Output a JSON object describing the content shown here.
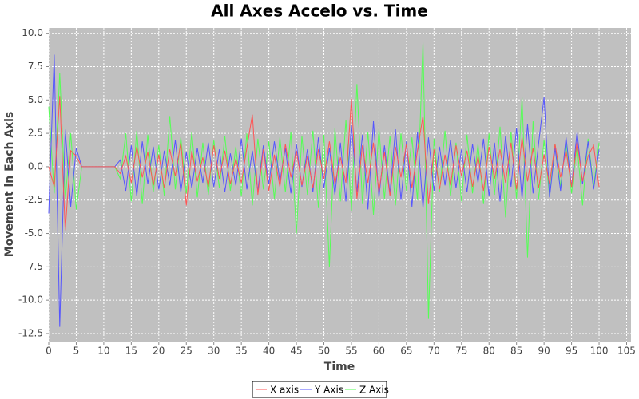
{
  "chart_data": {
    "type": "line",
    "title": "All Axes Accelo vs. Time",
    "x_label": "Time",
    "y_label": "Movement in Each Axis",
    "x": [
      0,
      1,
      2,
      3,
      4,
      5,
      6,
      7,
      8,
      9,
      10,
      11,
      12,
      13,
      14,
      15,
      16,
      17,
      18,
      19,
      20,
      21,
      22,
      23,
      24,
      25,
      26,
      27,
      28,
      29,
      30,
      31,
      32,
      33,
      34,
      35,
      36,
      37,
      38,
      39,
      40,
      41,
      42,
      43,
      44,
      45,
      46,
      47,
      48,
      49,
      50,
      51,
      52,
      53,
      54,
      55,
      56,
      57,
      58,
      59,
      60,
      61,
      62,
      63,
      64,
      65,
      66,
      67,
      68,
      69,
      70,
      71,
      72,
      73,
      74,
      75,
      76,
      77,
      78,
      79,
      80,
      81,
      82,
      83,
      84,
      85,
      86,
      87,
      88,
      89,
      90,
      91,
      92,
      93,
      94,
      95,
      96,
      97,
      98,
      99,
      100
    ],
    "series": [
      {
        "name": "X axis",
        "color": "#ff5555",
        "values": [
          0,
          -1.5,
          5.3,
          -4.8,
          1.2,
          0.8,
          0,
          0,
          0,
          0,
          0,
          0,
          0,
          -0.5,
          0.8,
          -1.2,
          1.5,
          -0.8,
          1.1,
          -1.4,
          0.9,
          -1.6,
          1.3,
          -0.7,
          1.8,
          -2.9,
          1.2,
          -1.1,
          0.7,
          -1.5,
          1.6,
          -0.9,
          1.2,
          -1.3,
          0.6,
          -1.2,
          1.4,
          3.9,
          -2.1,
          1.3,
          -1.8,
          0.9,
          -1.5,
          1.7,
          -0.8,
          1.2,
          -1.4,
          0.8,
          -1.6,
          1.3,
          -0.9,
          1.9,
          -1.3,
          0.7,
          -1.2,
          5.1,
          -2.4,
          1.6,
          -1.2,
          1.8,
          -1.9,
          1.1,
          -2.2,
          1.5,
          -0.8,
          1.7,
          -1.6,
          1.2,
          3.8,
          -2.8,
          1.3,
          -1.7,
          0.9,
          -1.4,
          1.6,
          -0.7,
          1.2,
          -1.5,
          0.8,
          -1.8,
          1.5,
          -0.9,
          1.3,
          -1.2,
          1.8,
          -1.7,
          2.2,
          -1.1,
          1.4,
          -1.6,
          0.9,
          -1.3,
          1.7,
          -0.8,
          1.2,
          -1.5,
          1.9,
          -1.1,
          0.8,
          1.6,
          -1.5
        ]
      },
      {
        "name": "Y Axis",
        "color": "#5555ff",
        "values": [
          -3.5,
          8.4,
          -12.0,
          2.8,
          -3.0,
          1.4,
          0,
          0,
          0,
          0,
          0,
          0,
          0,
          0.5,
          -1.8,
          1.6,
          -2.2,
          1.9,
          -1.3,
          1.5,
          -1.7,
          1.2,
          -1.4,
          2.0,
          -1.9,
          1.1,
          -1.6,
          1.4,
          -1.2,
          1.8,
          -1.5,
          1.3,
          -1.9,
          1.0,
          -1.4,
          2.1,
          -1.7,
          1.2,
          -1.8,
          1.6,
          -1.3,
          1.9,
          -1.1,
          1.4,
          -2.0,
          1.7,
          -1.5,
          1.3,
          -1.9,
          2.2,
          -1.6,
          1.4,
          -2.1,
          1.8,
          -2.6,
          3.1,
          -1.9,
          2.4,
          -3.2,
          3.4,
          -2.3,
          1.6,
          -2.0,
          2.8,
          -2.5,
          1.9,
          -3.0,
          2.6,
          -3.1,
          2.2,
          -1.8,
          1.5,
          -1.4,
          2.0,
          -1.6,
          1.3,
          -1.9,
          1.7,
          -1.2,
          2.1,
          -2.2,
          1.8,
          -2.6,
          2.3,
          -1.5,
          2.9,
          -2.4,
          3.2,
          -2.0,
          1.7,
          5.2,
          -2.3,
          1.4,
          -1.8,
          2.2,
          -1.5,
          2.6,
          -1.3,
          1.9,
          -1.7,
          1.3
        ]
      },
      {
        "name": "Z Axis",
        "color": "#55ff55",
        "values": [
          4.5,
          -2.0,
          7.0,
          -2.5,
          2.5,
          -3.2,
          0,
          0,
          0,
          0,
          0,
          0,
          0,
          -0.9,
          2.5,
          -2.6,
          2.7,
          -2.8,
          2.4,
          -1.9,
          1.6,
          -2.2,
          3.8,
          -1.7,
          2.2,
          -2.0,
          2.6,
          -2.3,
          1.8,
          -2.1,
          2.0,
          -1.6,
          2.3,
          -1.8,
          1.5,
          -2.2,
          2.5,
          -2.9,
          2.1,
          -1.7,
          1.9,
          -2.4,
          2.2,
          -1.9,
          2.6,
          -5.0,
          2.3,
          -2.1,
          2.7,
          -3.1,
          2.4,
          -7.5,
          2.9,
          -2.6,
          3.5,
          -3.3,
          6.2,
          -2.8,
          2.6,
          -3.6,
          2.8,
          -2.4,
          2.3,
          -2.9,
          2.5,
          -1.8,
          2.2,
          -2.5,
          9.3,
          -11.4,
          2.1,
          -1.9,
          2.7,
          -2.2,
          1.8,
          -2.6,
          2.4,
          -2.0,
          1.7,
          -2.8,
          2.5,
          -2.1,
          3.0,
          -3.8,
          2.6,
          -2.4,
          5.2,
          -6.8,
          3.4,
          -2.5,
          2.0,
          -2.2,
          1.7,
          -1.5,
          1.9,
          -2.0,
          1.6,
          -2.9,
          2.1,
          -1.5,
          1.8
        ]
      }
    ],
    "xlim": [
      0,
      105.8
    ],
    "ylim": [
      -13.1,
      10.4
    ],
    "xticks": [
      0,
      5,
      10,
      15,
      20,
      25,
      30,
      35,
      40,
      45,
      50,
      55,
      60,
      65,
      70,
      75,
      80,
      85,
      90,
      95,
      100,
      105
    ],
    "yticks": [
      {
        "value": -12.5,
        "label": "-12.5"
      },
      {
        "value": -10,
        "label": "-10.0"
      },
      {
        "value": -7.5,
        "label": "-7.5"
      },
      {
        "value": -5,
        "label": "-5.0"
      },
      {
        "value": -2.5,
        "label": "-2.5"
      },
      {
        "value": 0,
        "label": "0.0"
      },
      {
        "value": 2.5,
        "label": "2.5"
      },
      {
        "value": 5,
        "label": "5.0"
      },
      {
        "value": 7.5,
        "label": "7.5"
      },
      {
        "value": 10,
        "label": "10.0"
      }
    ],
    "grid": true,
    "legend": "bottom"
  }
}
